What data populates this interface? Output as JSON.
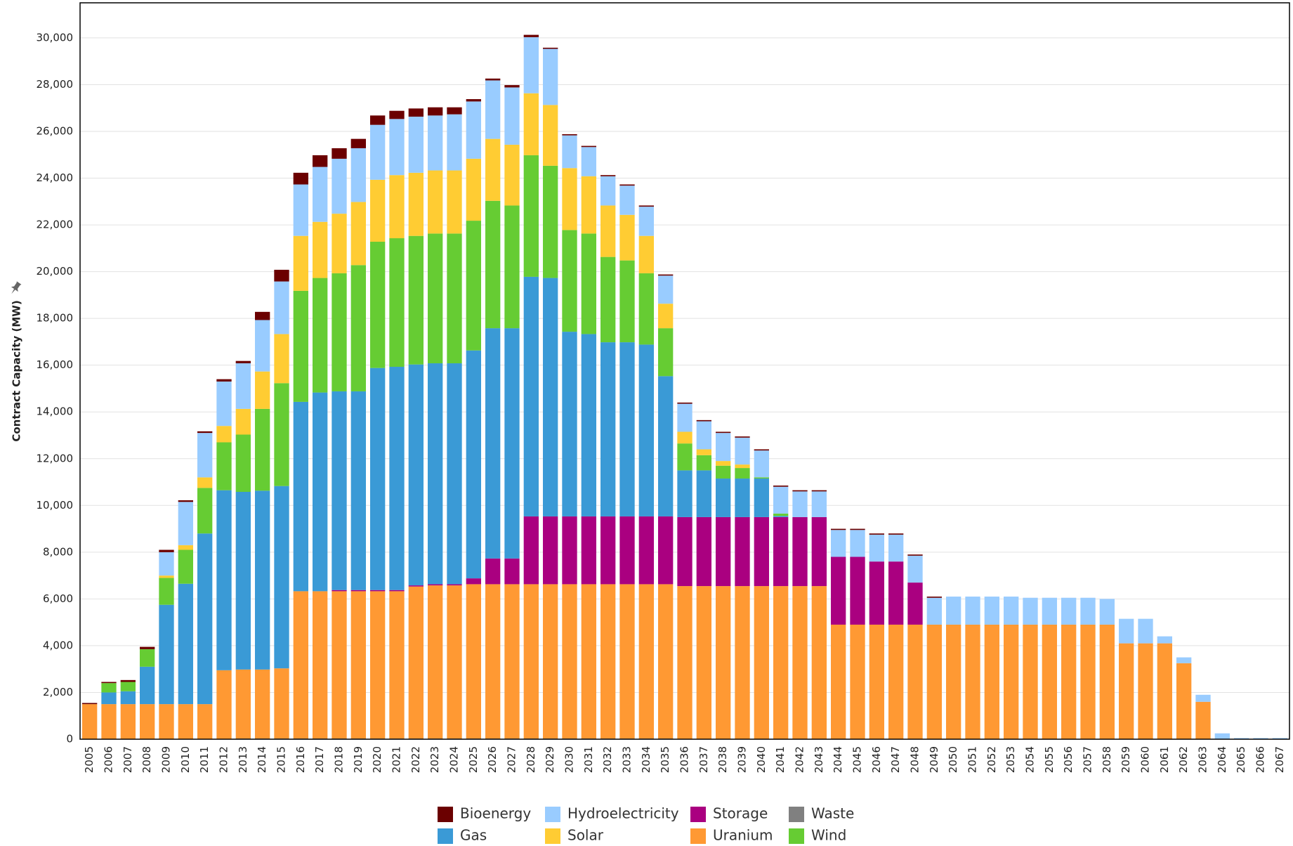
{
  "chart_data": {
    "type": "stacked_bar",
    "y_label": "Contract Capacity (MW)",
    "categories": [
      "2005",
      "2006",
      "2007",
      "2008",
      "2009",
      "2010",
      "2011",
      "2012",
      "2013",
      "2014",
      "2015",
      "2016",
      "2017",
      "2018",
      "2019",
      "2020",
      "2021",
      "2022",
      "2023",
      "2024",
      "2025",
      "2026",
      "2027",
      "2028",
      "2029",
      "2030",
      "2031",
      "2032",
      "2033",
      "2034",
      "2035",
      "2036",
      "2037",
      "2038",
      "2039",
      "2040",
      "2041",
      "2042",
      "2043",
      "2044",
      "2045",
      "2046",
      "2047",
      "2048",
      "2049",
      "2050",
      "2051",
      "2052",
      "2053",
      "2054",
      "2055",
      "2056",
      "2057",
      "2058",
      "2059",
      "2060",
      "2061",
      "2062",
      "2063",
      "2064",
      "2065",
      "2066",
      "2067"
    ],
    "series": [
      {
        "name": "Waste",
        "color": "#808080",
        "values": [
          0,
          0,
          0,
          0,
          0,
          0,
          0,
          0,
          30,
          30,
          30,
          30,
          30,
          30,
          30,
          30,
          30,
          30,
          30,
          30,
          30,
          30,
          30,
          30,
          30,
          30,
          30,
          30,
          30,
          30,
          30,
          0,
          0,
          0,
          0,
          0,
          0,
          0,
          0,
          0,
          0,
          0,
          0,
          0,
          0,
          0,
          0,
          0,
          0,
          0,
          0,
          0,
          0,
          0,
          0,
          0,
          0,
          0,
          0,
          0,
          0,
          0,
          0
        ]
      },
      {
        "name": "Uranium",
        "color": "#ff9933",
        "values": [
          1500,
          1500,
          1500,
          1500,
          1500,
          1500,
          1500,
          2950,
          2950,
          2950,
          3000,
          6300,
          6300,
          6300,
          6300,
          6300,
          6300,
          6500,
          6550,
          6550,
          6600,
          6600,
          6600,
          6600,
          6600,
          6600,
          6600,
          6600,
          6600,
          6600,
          6600,
          6550,
          6550,
          6550,
          6550,
          6550,
          6550,
          6550,
          6550,
          4900,
          4900,
          4900,
          4900,
          4900,
          4900,
          4900,
          4900,
          4900,
          4900,
          4900,
          4900,
          4900,
          4900,
          4900,
          4100,
          4100,
          4100,
          3250,
          1600,
          0,
          0,
          0,
          0
        ]
      },
      {
        "name": "Storage",
        "color": "#aa0080",
        "values": [
          0,
          0,
          0,
          0,
          0,
          0,
          0,
          0,
          0,
          0,
          0,
          0,
          0,
          50,
          50,
          50,
          50,
          50,
          50,
          50,
          250,
          1100,
          1100,
          2900,
          2900,
          2900,
          2900,
          2900,
          2900,
          2900,
          2900,
          2950,
          2950,
          2950,
          2950,
          2950,
          2950,
          2950,
          2950,
          2900,
          2900,
          2700,
          2700,
          1800,
          0,
          0,
          0,
          0,
          0,
          0,
          0,
          0,
          0,
          0,
          0,
          0,
          0,
          0,
          0,
          0,
          0,
          0,
          0
        ]
      },
      {
        "name": "Gas",
        "color": "#3a9ad6",
        "values": [
          0,
          500,
          550,
          1600,
          4250,
          5150,
          7300,
          7700,
          7600,
          7650,
          7800,
          8100,
          8500,
          8500,
          8500,
          9500,
          9550,
          9450,
          9450,
          9450,
          9750,
          9850,
          9850,
          10250,
          10200,
          7900,
          7800,
          7450,
          7450,
          7350,
          6000,
          2000,
          2000,
          1650,
          1650,
          1650,
          50,
          0,
          0,
          0,
          0,
          0,
          0,
          0,
          0,
          0,
          0,
          0,
          0,
          0,
          0,
          0,
          0,
          0,
          0,
          0,
          0,
          0,
          0,
          0,
          0,
          0,
          0
        ]
      },
      {
        "name": "Wind",
        "color": "#66cc33",
        "values": [
          0,
          400,
          400,
          750,
          1150,
          1450,
          1950,
          2050,
          2450,
          3500,
          4400,
          4750,
          4900,
          5050,
          5400,
          5400,
          5500,
          5500,
          5550,
          5550,
          5550,
          5450,
          5250,
          5200,
          4800,
          4350,
          4300,
          3650,
          3500,
          3050,
          2050,
          1150,
          650,
          550,
          450,
          50,
          100,
          0,
          0,
          0,
          0,
          0,
          0,
          0,
          0,
          0,
          0,
          0,
          0,
          0,
          0,
          0,
          0,
          0,
          0,
          0,
          0,
          0,
          0,
          0,
          0,
          0,
          0
        ]
      },
      {
        "name": "Solar",
        "color": "#ffcc33",
        "values": [
          0,
          0,
          0,
          0,
          100,
          200,
          450,
          700,
          1100,
          1600,
          2100,
          2350,
          2400,
          2550,
          2700,
          2650,
          2700,
          2700,
          2700,
          2700,
          2650,
          2650,
          2600,
          2650,
          2600,
          2650,
          2450,
          2200,
          1950,
          1600,
          1050,
          500,
          250,
          200,
          150,
          0,
          0,
          0,
          0,
          0,
          0,
          0,
          0,
          0,
          0,
          0,
          0,
          0,
          0,
          0,
          0,
          0,
          0,
          0,
          0,
          0,
          0,
          0,
          0,
          0,
          0,
          0,
          0
        ]
      },
      {
        "name": "Hydroelectricity",
        "color": "#99ccff",
        "values": [
          0,
          0,
          0,
          0,
          1000,
          1850,
          1900,
          1900,
          1950,
          2200,
          2250,
          2200,
          2350,
          2350,
          2300,
          2350,
          2400,
          2400,
          2350,
          2400,
          2450,
          2500,
          2450,
          2400,
          2400,
          1400,
          1250,
          1250,
          1250,
          1250,
          1200,
          1200,
          1200,
          1200,
          1150,
          1150,
          1150,
          1100,
          1100,
          1150,
          1150,
          1150,
          1150,
          1150,
          1150,
          1200,
          1200,
          1200,
          1200,
          1150,
          1150,
          1150,
          1150,
          1100,
          1050,
          1050,
          300,
          250,
          300,
          250,
          50,
          50,
          50
        ]
      },
      {
        "name": "Bioenergy",
        "color": "#6b0000",
        "values": [
          50,
          50,
          80,
          100,
          100,
          70,
          70,
          100,
          100,
          350,
          500,
          500,
          500,
          450,
          400,
          400,
          350,
          350,
          350,
          300,
          100,
          80,
          100,
          100,
          50,
          50,
          50,
          50,
          50,
          50,
          50,
          50,
          50,
          50,
          50,
          50,
          50,
          50,
          50,
          50,
          50,
          50,
          50,
          50,
          50,
          0,
          0,
          0,
          0,
          0,
          0,
          0,
          0,
          0,
          0,
          0,
          0,
          0,
          0,
          0,
          0,
          0,
          0
        ]
      }
    ],
    "ylim": [
      0,
      31500
    ],
    "yticks": [
      0,
      {
        "value": 2000,
        "label": "2,000"
      },
      {
        "value": 4000,
        "label": "4,000"
      },
      {
        "value": 6000,
        "label": "6,000"
      },
      {
        "value": 8000,
        "label": "8,000"
      },
      {
        "value": 10000,
        "label": "10,000"
      },
      {
        "value": 12000,
        "label": "12,000"
      },
      {
        "value": 14000,
        "label": "14,000"
      },
      {
        "value": 16000,
        "label": "16,000"
      },
      {
        "value": 18000,
        "label": "18,000"
      },
      {
        "value": 20000,
        "label": "20,000"
      },
      {
        "value": 22000,
        "label": "22,000"
      },
      {
        "value": 24000,
        "label": "24,000"
      },
      {
        "value": 26000,
        "label": "26,000"
      },
      {
        "value": 28000,
        "label": "28,000"
      },
      {
        "value": 30000,
        "label": "30,000"
      }
    ],
    "grid": true,
    "legend": "bottom"
  }
}
